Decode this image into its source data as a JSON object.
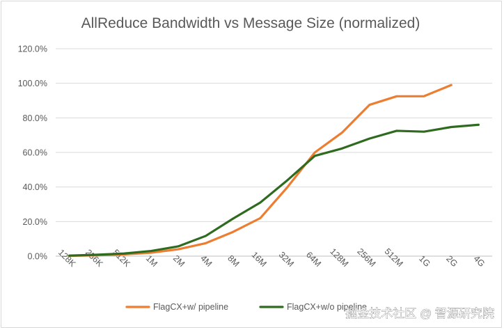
{
  "chart_data": {
    "type": "line",
    "title": "AllReduce Bandwidth vs Message Size (normalized)",
    "xlabel": "",
    "ylabel": "",
    "ylim": [
      0,
      120
    ],
    "y_ticks": [
      "0.0%",
      "20.0%",
      "40.0%",
      "60.0%",
      "80.0%",
      "100.0%",
      "120.0%"
    ],
    "categories": [
      "128K",
      "256K",
      "512K",
      "1M",
      "2M",
      "4M",
      "8M",
      "16M",
      "32M",
      "64M",
      "128M",
      "256M",
      "512M",
      "1G",
      "2G",
      "4G"
    ],
    "grid": true,
    "legend_position": "bottom",
    "series": [
      {
        "name": "FlagCX+w/ pipeline",
        "color": "#ED7D31",
        "values": [
          0.2,
          0.5,
          1.0,
          2.0,
          4.0,
          7.5,
          14.0,
          22.0,
          40.0,
          60.0,
          71.5,
          87.5,
          92.5,
          92.5,
          99.0,
          null
        ]
      },
      {
        "name": "FlagCX+w/o pipeline",
        "color": "#2E6B1F",
        "values": [
          0.3,
          0.8,
          1.5,
          3.0,
          5.7,
          11.7,
          21.7,
          31.0,
          44.0,
          58.0,
          62.3,
          68.0,
          72.5,
          72.0,
          74.7,
          76.0
        ]
      }
    ]
  },
  "watermark": {
    "text": "掘金技术社区 @ 智源研究院"
  }
}
